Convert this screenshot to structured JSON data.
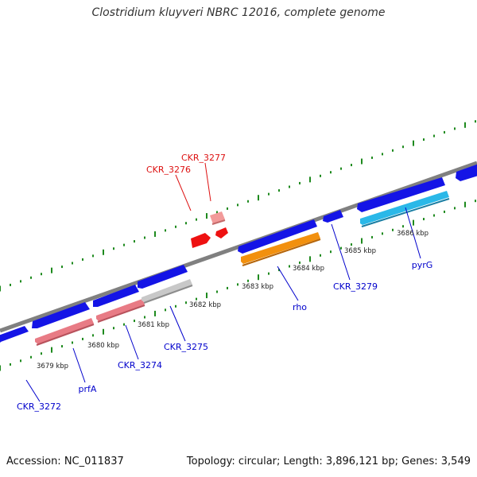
{
  "title": "Clostridium kluyveri NBRC 12016, complete genome",
  "footer": {
    "accession": "Accession: NC_011837",
    "topology": "Topology: circular; Length: 3,896,121 bp; Genes: 3,549"
  },
  "colors": {
    "backbone": "#808080",
    "tick": "#1e8a1e",
    "cds_blue": "#1414e6",
    "cds_pink": "#e87b85",
    "cds_grey": "#c8c8c8",
    "cds_orange": "#f2900e",
    "cds_cyan": "#2ab8e8",
    "red_feature": "#ee1111",
    "label_blue": "#0000cc",
    "label_red": "#dd1111"
  },
  "scale_labels": [
    "3679 kbp",
    "3680 kbp",
    "3681 kbp",
    "3682 kbp",
    "3683 kbp",
    "3684 kbp",
    "3685 kbp",
    "3686 kbp"
  ],
  "gene_labels": {
    "CKR_3272": "CKR_3272",
    "prfA": "prfA",
    "CKR_3274": "CKR_3274",
    "CKR_3275": "CKR_3275",
    "rho": "rho",
    "CKR_3279": "CKR_3279",
    "pyrG": "pyrG",
    "CKR_3276": "CKR_3276",
    "CKR_3277": "CKR_3277"
  }
}
